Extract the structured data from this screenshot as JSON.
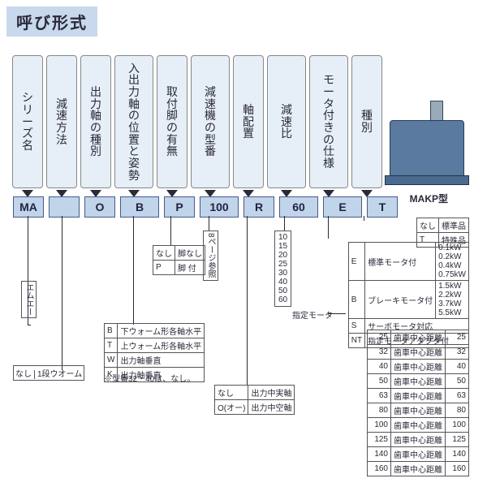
{
  "title": "呼び形式",
  "headers": [
    {
      "label": "シリーズ名",
      "code": "MA"
    },
    {
      "label": "減速方法",
      "code": ""
    },
    {
      "label": "出力軸の種別",
      "code": "O"
    },
    {
      "label": "入出力軸の位置と姿勢",
      "code": "B",
      "wide": true
    },
    {
      "label": "取付脚の有無",
      "code": "P"
    },
    {
      "label": "減速機の型番",
      "code": "100",
      "wide": true
    },
    {
      "label": "軸配置",
      "code": "R"
    },
    {
      "label": "減速比",
      "code": "60",
      "wide": true
    },
    {
      "label": "モータ付きの仕様",
      "code": "E",
      "wide": true
    },
    {
      "label": "種別",
      "code": "T"
    }
  ],
  "gear_model": "MAKP型",
  "series_note": "エムエー",
  "reduction_method_note": "1段ウオーム",
  "model_page_note": "8ページ参照",
  "designated_motor": "指定モータ",
  "leg_table": {
    "rows": [
      [
        "なし",
        "脚なし"
      ],
      [
        "P",
        "脚 付"
      ]
    ]
  },
  "pose_table": {
    "rows": [
      [
        "B",
        "下ウォーム形各軸水平"
      ],
      [
        "T",
        "上ウォーム形各軸水平"
      ],
      [
        "W",
        "出力軸垂直"
      ],
      [
        "K",
        "出力軸垂直"
      ]
    ],
    "note": "※型番32・40は、なし。"
  },
  "shaft_table": {
    "rows": [
      [
        "なし",
        "出力中実軸"
      ],
      [
        "O(オー)",
        "出力中空軸"
      ]
    ]
  },
  "ratios": [
    "10",
    "15",
    "20",
    "25",
    "30",
    "40",
    "50",
    "60"
  ],
  "kind_table": {
    "rows": [
      [
        "なし",
        "標準品"
      ],
      [
        "T",
        "特殊品"
      ]
    ]
  },
  "motor_table": {
    "rows": [
      [
        "E",
        "標準モータ付",
        "0.1kW\n0.2kW\n0.4kW\n0.75kW"
      ],
      [
        "B",
        "ブレーキモータ付",
        "1.5kW\n2.2kW\n3.7kW\n5.5kW"
      ],
      [
        "S",
        "サーボモータ対応",
        ""
      ],
      [
        "NT",
        "指定モータアダプタ付",
        ""
      ]
    ]
  },
  "center_distance": {
    "codes": [
      "25",
      "32",
      "40",
      "50",
      "63",
      "80",
      "100",
      "125",
      "140",
      "160"
    ],
    "desc": "歯車中心距離"
  },
  "colors": {
    "band": "#c8d8ed",
    "vbox": "#e6eef7",
    "code": "#c0d4ea",
    "gear": "#5a7aa0"
  }
}
